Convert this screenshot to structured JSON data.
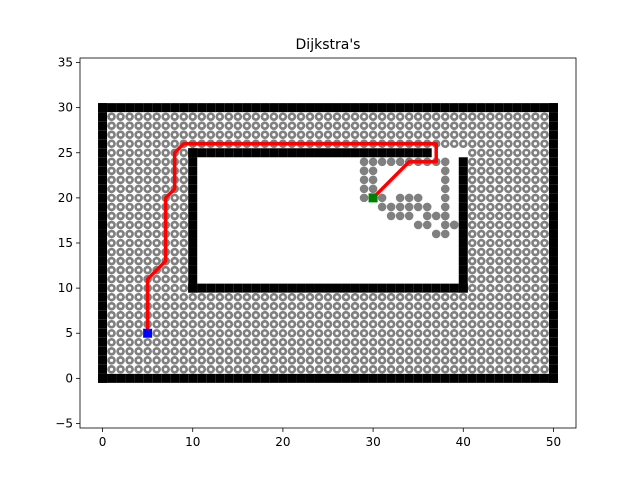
{
  "chart_data": {
    "type": "scatter",
    "title": "Dijkstra's",
    "xlabel": "",
    "ylabel": "",
    "xlim": [
      -2.5,
      52.5
    ],
    "ylim": [
      -5.5,
      35.5
    ],
    "grid": false,
    "x_ticks": [
      "0",
      "10",
      "20",
      "30",
      "40",
      "50"
    ],
    "y_ticks": [
      "−5",
      "0",
      "5",
      "10",
      "15",
      "20",
      "25",
      "30",
      "35"
    ],
    "x_tick_values": [
      0,
      10,
      20,
      30,
      40,
      50
    ],
    "y_tick_values": [
      -5,
      0,
      5,
      10,
      15,
      20,
      25,
      30,
      35
    ],
    "start": {
      "x": 5,
      "y": 5
    },
    "goal": {
      "x": 30,
      "y": 20
    },
    "path": [
      [
        5,
        5
      ],
      [
        5,
        11
      ],
      [
        7,
        13
      ],
      [
        7,
        20
      ],
      [
        8,
        21
      ],
      [
        8,
        25
      ],
      [
        9,
        26
      ],
      [
        37,
        26
      ],
      [
        37,
        24
      ],
      [
        34,
        24
      ],
      [
        30,
        20
      ]
    ],
    "obstacles": [
      {
        "from": [
          0,
          0
        ],
        "to": [
          50,
          0
        ]
      },
      {
        "from": [
          0,
          0
        ],
        "to": [
          0,
          30
        ]
      },
      {
        "from": [
          50,
          0
        ],
        "to": [
          50,
          30
        ]
      },
      {
        "from": [
          0,
          30
        ],
        "to": [
          50,
          30
        ]
      },
      {
        "from": [
          10,
          10
        ],
        "to": [
          40,
          10
        ]
      },
      {
        "from": [
          10,
          10
        ],
        "to": [
          10,
          25
        ]
      },
      {
        "from": [
          10,
          25
        ],
        "to": [
          36,
          25
        ]
      },
      {
        "from": [
          40,
          10
        ],
        "to": [
          40,
          24
        ]
      }
    ],
    "colors": {
      "explored": "#808080",
      "visited": "#ffffff",
      "obstacle": "#000000",
      "path": "#ff0000",
      "start": "#0000ff",
      "goal": "#008000"
    }
  }
}
